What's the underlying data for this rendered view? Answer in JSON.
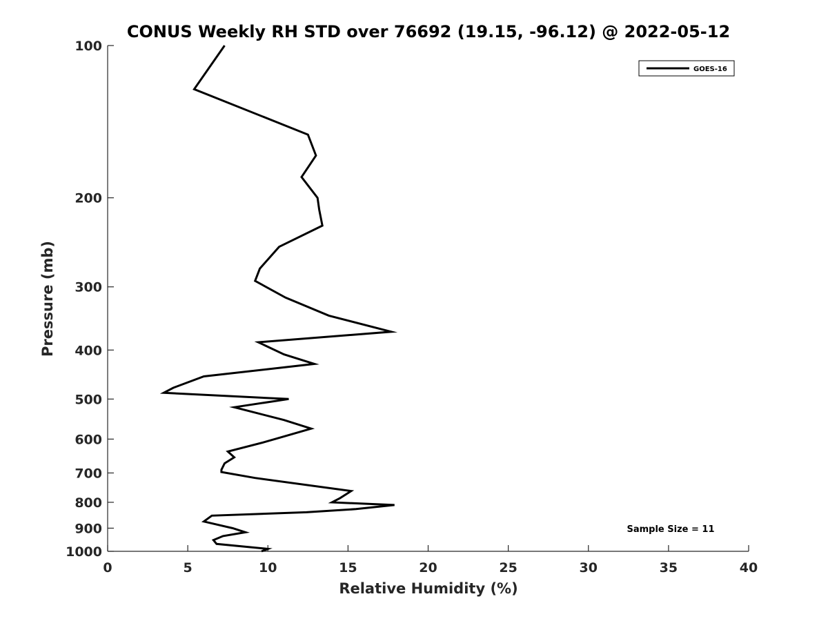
{
  "chart_data": {
    "type": "line",
    "title": "CONUS Weekly RH STD over 76692 (19.15, -96.12) @ 2022-05-12",
    "xlabel": "Relative Humidity (%)",
    "ylabel": "Pressure (mb)",
    "xlim": [
      0,
      40
    ],
    "ylim": [
      100,
      1000
    ],
    "y_scale": "log",
    "y_reversed": true,
    "grid": false,
    "legend_position": "top-right",
    "x_ticks": [
      0,
      5,
      10,
      15,
      20,
      25,
      30,
      35,
      40
    ],
    "y_ticks": [
      100,
      200,
      300,
      400,
      500,
      600,
      700,
      800,
      900,
      1000
    ],
    "series": [
      {
        "name": "GOES-16",
        "color": "#000000",
        "x": [
          7.3,
          5.4,
          12.5,
          13.0,
          12.1,
          13.1,
          13.2,
          13.4,
          10.7,
          9.5,
          9.2,
          11.1,
          13.8,
          17.7,
          9.4,
          11.0,
          12.9,
          6.0,
          4.1,
          3.5,
          11.3,
          7.9,
          11.0,
          12.7,
          9.8,
          7.5,
          7.9,
          7.3,
          7.1,
          7.1,
          9.2,
          15.2,
          14.5,
          14.0,
          17.9,
          15.5,
          12.4,
          6.5,
          6.0,
          7.8,
          8.6,
          7.2,
          6.6,
          6.8,
          10.0,
          9.6
        ],
        "y": [
          100,
          122,
          150,
          165,
          182,
          200,
          211,
          227,
          250,
          276,
          292,
          315,
          342,
          368,
          386,
          408,
          426,
          451,
          475,
          486,
          500,
          519,
          550,
          572,
          608,
          635,
          652,
          670,
          690,
          697,
          716,
          760,
          785,
          800,
          810,
          825,
          837,
          850,
          873,
          900,
          917,
          933,
          950,
          967,
          989,
          1000
        ]
      }
    ],
    "annotations": [
      {
        "text": "Sample Size = 11"
      }
    ]
  }
}
